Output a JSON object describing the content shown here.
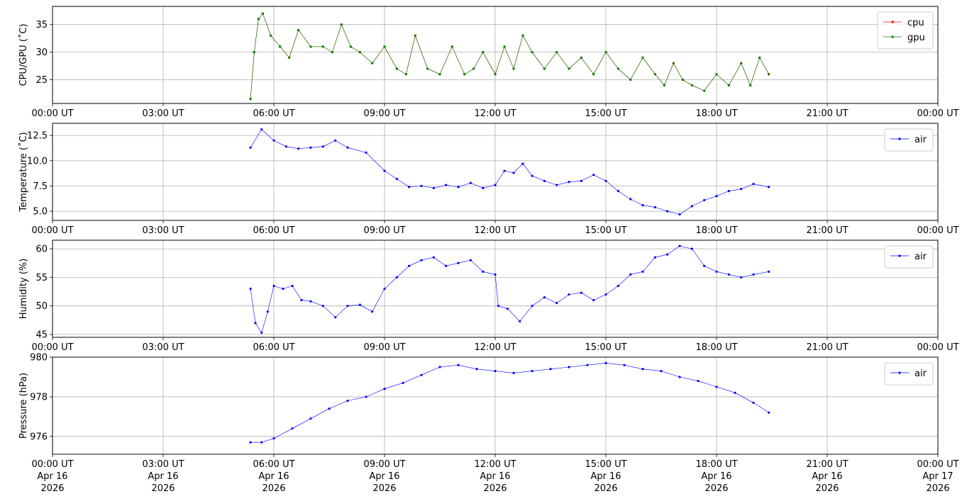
{
  "chart_data": [
    {
      "type": "scatter",
      "ylabel": "CPU/GPU (˚C)",
      "xlim": [
        "2026-04-16T00:00",
        "2026-04-17T00:00"
      ],
      "ylim": [
        20.7,
        38.3
      ],
      "yticks": [
        25,
        30,
        35
      ],
      "grid": true,
      "legend": "top-right",
      "xtick_labels": [
        "00:00 UT",
        "03:00 UT",
        "06:00 UT",
        "09:00 UT",
        "12:00 UT",
        "15:00 UT",
        "18:00 UT",
        "21:00 UT",
        "00:00 UT"
      ],
      "series": [
        {
          "name": "cpu",
          "color": "#ff0000",
          "x": [
            "05:22",
            "05:28",
            "05:35",
            "05:42",
            "05:55",
            "06:10",
            "06:25",
            "06:40",
            "07:00",
            "07:20",
            "07:35",
            "07:50",
            "08:05",
            "08:20",
            "08:40",
            "09:00",
            "09:20",
            "09:35",
            "09:50",
            "10:10",
            "10:30",
            "10:50",
            "11:10",
            "11:25",
            "11:40",
            "12:00",
            "12:15",
            "12:30",
            "12:45",
            "13:00",
            "13:20",
            "13:40",
            "14:00",
            "14:20",
            "14:40",
            "15:00",
            "15:20",
            "15:40",
            "16:00",
            "16:20",
            "16:35",
            "16:50",
            "17:05",
            "17:20",
            "17:40",
            "18:00",
            "18:20",
            "18:40",
            "18:55",
            "19:10",
            "19:25"
          ],
          "y": [
            21.5,
            30,
            36,
            37,
            33,
            31,
            29,
            34,
            31,
            31,
            30,
            35,
            31,
            30,
            28,
            31,
            27,
            26,
            33,
            27,
            26,
            31,
            26,
            27,
            30,
            26,
            31,
            27,
            33,
            30,
            27,
            30,
            27,
            29,
            26,
            30,
            27,
            25,
            29,
            26,
            24,
            28,
            25,
            24,
            23,
            26,
            24,
            28,
            24,
            29,
            26
          ]
        },
        {
          "name": "gpu",
          "color": "#008000",
          "x": [
            "05:22",
            "05:28",
            "05:35",
            "05:42",
            "05:55",
            "06:10",
            "06:25",
            "06:40",
            "07:00",
            "07:20",
            "07:35",
            "07:50",
            "08:05",
            "08:20",
            "08:40",
            "09:00",
            "09:20",
            "09:35",
            "09:50",
            "10:10",
            "10:30",
            "10:50",
            "11:10",
            "11:25",
            "11:40",
            "12:00",
            "12:15",
            "12:30",
            "12:45",
            "13:00",
            "13:20",
            "13:40",
            "14:00",
            "14:20",
            "14:40",
            "15:00",
            "15:20",
            "15:40",
            "16:00",
            "16:20",
            "16:35",
            "16:50",
            "17:05",
            "17:20",
            "17:40",
            "18:00",
            "18:20",
            "18:40",
            "18:55",
            "19:10",
            "19:25"
          ],
          "y": [
            21.5,
            30,
            36,
            37,
            33,
            31,
            29,
            34,
            31,
            31,
            30,
            35,
            31,
            30,
            28,
            31,
            27,
            26,
            33,
            27,
            26,
            31,
            26,
            27,
            30,
            26,
            31,
            27,
            33,
            30,
            27,
            30,
            27,
            29,
            26,
            30,
            27,
            25,
            29,
            26,
            24,
            28,
            25,
            24,
            23,
            26,
            24,
            28,
            24,
            29,
            26
          ]
        }
      ]
    },
    {
      "type": "scatter",
      "ylabel": "Temperature (˚C)",
      "xlim": [
        "2026-04-16T00:00",
        "2026-04-17T00:00"
      ],
      "ylim": [
        4.1,
        13.7
      ],
      "yticks": [
        5.0,
        7.5,
        10.0,
        12.5
      ],
      "ytick_labels": [
        "5.0",
        "7.5",
        "10.0",
        "12.5"
      ],
      "grid": true,
      "legend": "top-right",
      "xtick_labels": [
        "00:00 UT",
        "03:00 UT",
        "06:00 UT",
        "09:00 UT",
        "12:00 UT",
        "15:00 UT",
        "18:00 UT",
        "21:00 UT",
        "00:00 UT"
      ],
      "series": [
        {
          "name": "air",
          "color": "#0000ff",
          "x": [
            "05:22",
            "05:40",
            "06:00",
            "06:20",
            "06:40",
            "07:00",
            "07:20",
            "07:40",
            "08:00",
            "08:30",
            "09:00",
            "09:20",
            "09:40",
            "10:00",
            "10:20",
            "10:40",
            "11:00",
            "11:20",
            "11:40",
            "12:00",
            "12:15",
            "12:30",
            "12:45",
            "13:00",
            "13:20",
            "13:40",
            "14:00",
            "14:20",
            "14:40",
            "15:00",
            "15:20",
            "15:40",
            "16:00",
            "16:20",
            "16:40",
            "17:00",
            "17:20",
            "17:40",
            "18:00",
            "18:20",
            "18:40",
            "19:00",
            "19:25"
          ],
          "y": [
            11.3,
            13.1,
            12.0,
            11.4,
            11.2,
            11.3,
            11.4,
            12.0,
            11.3,
            10.8,
            9.0,
            8.2,
            7.4,
            7.5,
            7.3,
            7.6,
            7.4,
            7.8,
            7.3,
            7.6,
            9.0,
            8.8,
            9.7,
            8.5,
            8.0,
            7.6,
            7.9,
            8.0,
            8.6,
            8.0,
            7.0,
            6.2,
            5.6,
            5.4,
            5.0,
            4.7,
            5.5,
            6.1,
            6.5,
            7.0,
            7.2,
            7.7,
            7.4
          ]
        }
      ]
    },
    {
      "type": "scatter",
      "ylabel": "Humidity (%)",
      "xlim": [
        "2026-04-16T00:00",
        "2026-04-17T00:00"
      ],
      "ylim": [
        44.5,
        61.5
      ],
      "yticks": [
        45,
        50,
        55,
        60
      ],
      "grid": true,
      "legend": "top-right",
      "xtick_labels": [
        "00:00 UT",
        "03:00 UT",
        "06:00 UT",
        "09:00 UT",
        "12:00 UT",
        "15:00 UT",
        "18:00 UT",
        "21:00 UT",
        "00:00 UT"
      ],
      "series": [
        {
          "name": "air",
          "color": "#0000ff",
          "x": [
            "05:22",
            "05:30",
            "05:40",
            "05:50",
            "06:00",
            "06:15",
            "06:30",
            "06:45",
            "07:00",
            "07:20",
            "07:40",
            "08:00",
            "08:20",
            "08:40",
            "09:00",
            "09:20",
            "09:40",
            "10:00",
            "10:20",
            "10:40",
            "11:00",
            "11:20",
            "11:40",
            "12:00",
            "12:05",
            "12:20",
            "12:40",
            "13:00",
            "13:20",
            "13:40",
            "14:00",
            "14:20",
            "14:40",
            "15:00",
            "15:20",
            "15:40",
            "16:00",
            "16:20",
            "16:40",
            "17:00",
            "17:20",
            "17:40",
            "18:00",
            "18:20",
            "18:40",
            "19:00",
            "19:25"
          ],
          "y": [
            53,
            47,
            45.3,
            49,
            53.5,
            53,
            53.5,
            51,
            50.8,
            50,
            48,
            50,
            50.2,
            49,
            53,
            55,
            57,
            58,
            58.5,
            57,
            57.5,
            58,
            56,
            55.5,
            50,
            49.5,
            47.3,
            50,
            51.5,
            50.5,
            52,
            52.3,
            51,
            52,
            53.5,
            55.5,
            56,
            58.5,
            59,
            60.5,
            60,
            57,
            56,
            55.5,
            55,
            55.5,
            56
          ]
        }
      ]
    },
    {
      "type": "scatter",
      "ylabel": "Pressure (hPa)",
      "xlim": [
        "2026-04-16T00:00",
        "2026-04-17T00:00"
      ],
      "ylim": [
        975.1,
        980.0
      ],
      "yticks": [
        976,
        978,
        980
      ],
      "grid": true,
      "legend": "top-right",
      "xtick_labels": [
        "00:00 UT",
        "03:00 UT",
        "06:00 UT",
        "09:00 UT",
        "12:00 UT",
        "15:00 UT",
        "18:00 UT",
        "21:00 UT",
        "00:00 UT"
      ],
      "xtick_dates": [
        "Apr 16",
        "Apr 16",
        "Apr 16",
        "Apr 16",
        "Apr 16",
        "Apr 16",
        "Apr 16",
        "Apr 16",
        "Apr 17"
      ],
      "xtick_years": [
        "2026",
        "2026",
        "2026",
        "2026",
        "2026",
        "2026",
        "2026",
        "2026",
        "2026"
      ],
      "series": [
        {
          "name": "air",
          "color": "#0000ff",
          "x": [
            "05:22",
            "05:40",
            "06:00",
            "06:30",
            "07:00",
            "07:30",
            "08:00",
            "08:30",
            "09:00",
            "09:30",
            "10:00",
            "10:30",
            "11:00",
            "11:30",
            "12:00",
            "12:30",
            "13:00",
            "13:30",
            "14:00",
            "14:30",
            "15:00",
            "15:30",
            "16:00",
            "16:30",
            "17:00",
            "17:30",
            "18:00",
            "18:30",
            "19:00",
            "19:25"
          ],
          "y": [
            975.7,
            975.7,
            975.9,
            976.4,
            976.9,
            977.4,
            977.8,
            978.0,
            978.4,
            978.7,
            979.1,
            979.5,
            979.6,
            979.4,
            979.3,
            979.2,
            979.3,
            979.4,
            979.5,
            979.6,
            979.7,
            979.6,
            979.4,
            979.3,
            979.0,
            978.8,
            978.5,
            978.2,
            977.7,
            977.2
          ]
        }
      ]
    }
  ]
}
